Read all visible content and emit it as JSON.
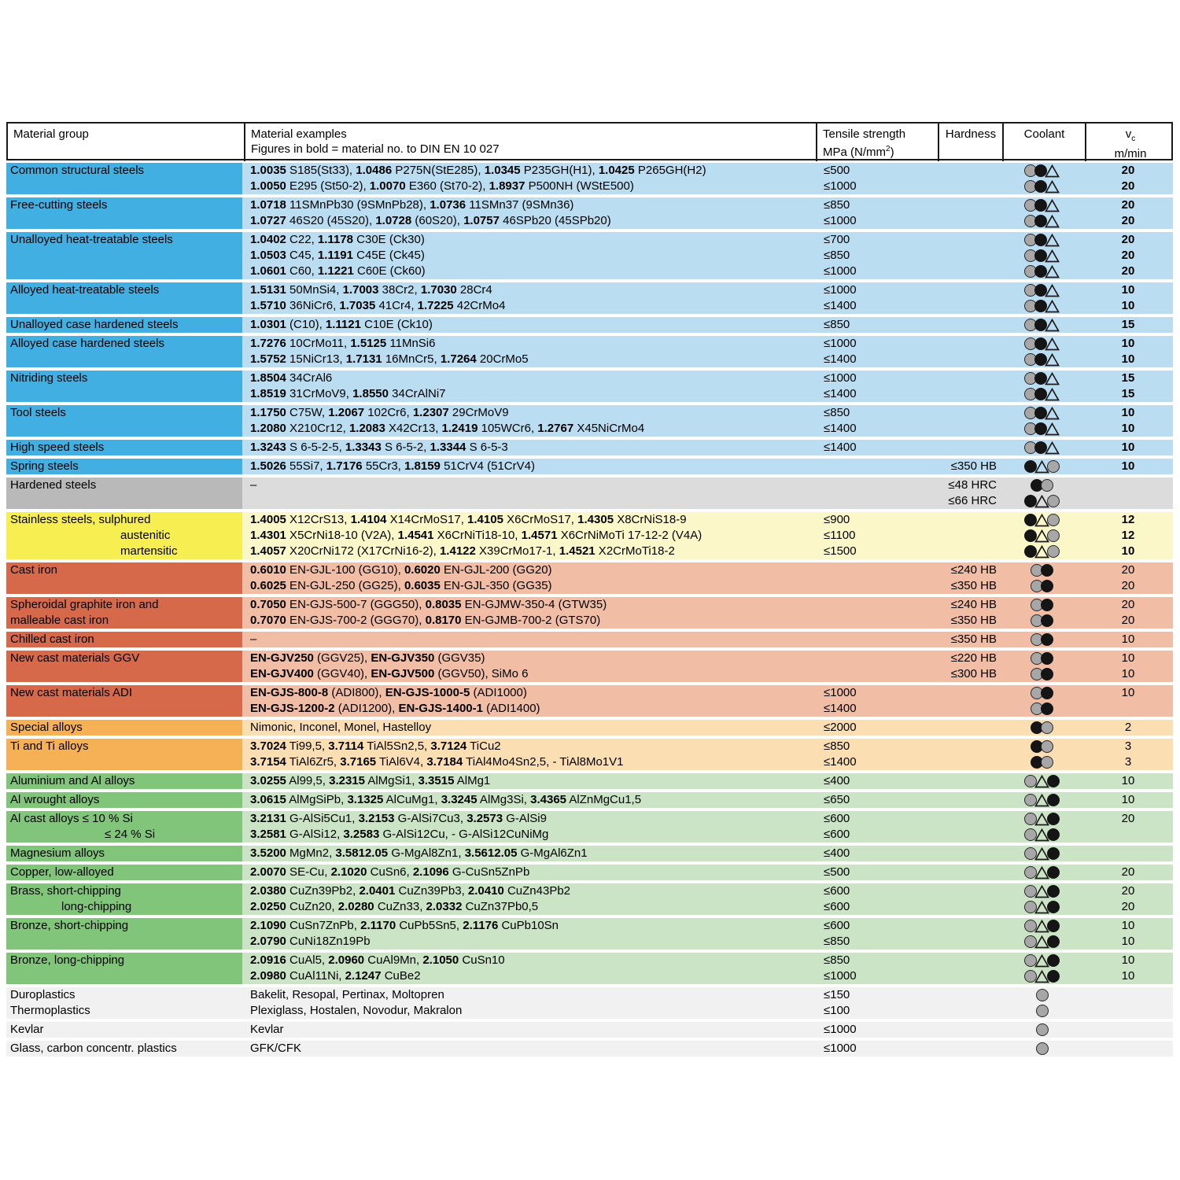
{
  "header": {
    "col_material_group": "Material group",
    "col_examples_line1": "Material examples",
    "col_examples_line2": "Figures in bold = material no. to DIN EN 10 027",
    "col_tensile_line1": "Tensile strength",
    "col_tensile_line2_pre": "MPa (N/mm",
    "col_tensile_sup": "2",
    "col_tensile_line2_post": ")",
    "col_hardness": "Hardness",
    "col_coolant": "Coolant",
    "col_vc_main": "v",
    "col_vc_sub": "c",
    "col_vc_line2": "m/min"
  },
  "coolant_legend": {
    "G": "gray-circle",
    "B": "black-circle",
    "T": "white-triangle"
  },
  "themes": {
    "blue": {
      "group": "#42afe2",
      "row": "#bbddf2"
    },
    "gray": {
      "group": "#b9b9b9",
      "row": "#dcdcdc"
    },
    "yellow": {
      "group": "#f7ee51",
      "row": "#fbf7c9"
    },
    "red": {
      "group": "#d5694a",
      "row": "#f2bda5"
    },
    "orange": {
      "group": "#f6b055",
      "row": "#fbdfb2"
    },
    "green": {
      "group": "#80c579",
      "row": "#cbe4c6"
    },
    "plain": {
      "group": "#f1f1f1",
      "row": "#f1f1f1"
    }
  },
  "groups": [
    {
      "theme": "blue",
      "vc_bold": true,
      "label": [
        {
          "text": "Common structural steels",
          "indent": 0
        }
      ],
      "rows": [
        {
          "ex": "**1.0035** S185(St33), **1.0486** P275N(StE285), **1.0345** P235GH(H1), **1.0425** P265GH(H2)",
          "tensile": "≤500",
          "hardness": "",
          "cool": "GBT",
          "vc": "20"
        },
        {
          "ex": "**1.0050** E295 (St50-2), **1.0070** E360 (St70-2), **1.8937** P500NH (WStE500)",
          "tensile": "≤1000",
          "hardness": "",
          "cool": "GBT",
          "vc": "20"
        }
      ]
    },
    {
      "theme": "blue",
      "vc_bold": true,
      "label": [
        {
          "text": "Free-cutting steels",
          "indent": 0
        }
      ],
      "rows": [
        {
          "ex": "**1.0718** 11SMnPb30 (9SMnPb28), **1.0736** 11SMn37 (9SMn36)",
          "tensile": "≤850",
          "hardness": "",
          "cool": "GBT",
          "vc": "20"
        },
        {
          "ex": "**1.0727** 46S20 (45S20), **1.0728** (60S20), **1.0757** 46SPb20 (45SPb20)",
          "tensile": "≤1000",
          "hardness": "",
          "cool": "GBT",
          "vc": "20"
        }
      ]
    },
    {
      "theme": "blue",
      "vc_bold": true,
      "label": [
        {
          "text": "Unalloyed heat-treatable steels",
          "indent": 0
        }
      ],
      "rows": [
        {
          "ex": "**1.0402** C22, **1.1178** C30E (Ck30)",
          "tensile": "≤700",
          "hardness": "",
          "cool": "GBT",
          "vc": "20"
        },
        {
          "ex": "**1.0503** C45, **1.1191** C45E (Ck45)",
          "tensile": "≤850",
          "hardness": "",
          "cool": "GBT",
          "vc": "20"
        },
        {
          "ex": "**1.0601** C60, **1.1221** C60E (Ck60)",
          "tensile": "≤1000",
          "hardness": "",
          "cool": "GBT",
          "vc": "20"
        }
      ]
    },
    {
      "theme": "blue",
      "vc_bold": true,
      "label": [
        {
          "text": "Alloyed heat-treatable steels",
          "indent": 0
        }
      ],
      "rows": [
        {
          "ex": "**1.5131** 50MnSi4, **1.7003** 38Cr2, **1.7030** 28Cr4",
          "tensile": "≤1000",
          "hardness": "",
          "cool": "GBT",
          "vc": "10"
        },
        {
          "ex": "**1.5710** 36NiCr6, **1.7035** 41Cr4, **1.7225** 42CrMo4",
          "tensile": "≤1400",
          "hardness": "",
          "cool": "GBT",
          "vc": "10"
        }
      ]
    },
    {
      "theme": "blue",
      "vc_bold": true,
      "label": [
        {
          "text": "Unalloyed case hardened steels",
          "indent": 0
        }
      ],
      "rows": [
        {
          "ex": "**1.0301** (C10), **1.1121** C10E (Ck10)",
          "tensile": "≤850",
          "hardness": "",
          "cool": "GBT",
          "vc": "15"
        }
      ]
    },
    {
      "theme": "blue",
      "vc_bold": true,
      "label": [
        {
          "text": "Alloyed case hardened steels",
          "indent": 0
        }
      ],
      "rows": [
        {
          "ex": "**1.7276** 10CrMo11, **1.5125** 11MnSi6",
          "tensile": "≤1000",
          "hardness": "",
          "cool": "GBT",
          "vc": "10"
        },
        {
          "ex": "**1.5752** 15NiCr13, **1.7131** 16MnCr5, **1.7264** 20CrMo5",
          "tensile": "≤1400",
          "hardness": "",
          "cool": "GBT",
          "vc": "10"
        }
      ]
    },
    {
      "theme": "blue",
      "vc_bold": true,
      "label": [
        {
          "text": "Nitriding steels",
          "indent": 0
        }
      ],
      "rows": [
        {
          "ex": "**1.8504** 34CrAl6",
          "tensile": "≤1000",
          "hardness": "",
          "cool": "GBT",
          "vc": "15"
        },
        {
          "ex": "**1.8519** 31CrMoV9, **1.8550** 34CrAlNi7",
          "tensile": "≤1400",
          "hardness": "",
          "cool": "GBT",
          "vc": "15"
        }
      ]
    },
    {
      "theme": "blue",
      "vc_bold": true,
      "label": [
        {
          "text": "Tool steels",
          "indent": 0
        }
      ],
      "rows": [
        {
          "ex": "**1.1750** C75W, **1.2067** 102Cr6, **1.2307** 29CrMoV9",
          "tensile": "≤850",
          "hardness": "",
          "cool": "GBT",
          "vc": "10"
        },
        {
          "ex": "**1.2080** X210Cr12, **1.2083** X42Cr13, **1.2419** 105WCr6, **1.2767** X45NiCrMo4",
          "tensile": "≤1400",
          "hardness": "",
          "cool": "GBT",
          "vc": "10"
        }
      ]
    },
    {
      "theme": "blue",
      "vc_bold": true,
      "label": [
        {
          "text": "High speed steels",
          "indent": 0
        }
      ],
      "rows": [
        {
          "ex": "**1.3243** S 6-5-2-5, **1.3343** S 6-5-2, **1.3344** S 6-5-3",
          "tensile": "≤1400",
          "hardness": "",
          "cool": "GBT",
          "vc": "10"
        }
      ]
    },
    {
      "theme": "blue",
      "vc_bold": true,
      "label": [
        {
          "text": "Spring steels",
          "indent": 0
        }
      ],
      "rows": [
        {
          "ex": "**1.5026** 55Si7, **1.7176** 55Cr3, **1.8159** 51CrV4 (51CrV4)",
          "tensile": "",
          "hardness": "≤350 HB",
          "cool": "BTG",
          "vc": "10"
        }
      ]
    },
    {
      "theme": "gray",
      "vc_bold": false,
      "label": [
        {
          "text": "Hardened steels",
          "indent": 0
        }
      ],
      "rows": [
        {
          "ex": "–",
          "tensile": "",
          "hardness": "≤48 HRC",
          "cool": "BG",
          "vc": ""
        },
        {
          "ex": "",
          "tensile": "",
          "hardness": "≤66 HRC",
          "cool": "BTG",
          "vc": ""
        }
      ]
    },
    {
      "theme": "yellow",
      "vc_bold": true,
      "row_labels": [
        {
          "text": "Stainless steels, sulphured",
          "indent": 0
        },
        {
          "text": "austenitic",
          "indent": 140
        },
        {
          "text": "martensitic",
          "indent": 140
        }
      ],
      "rows": [
        {
          "ex": "**1.4005** X12CrS13, **1.4104** X14CrMoS17, **1.4105** X6CrMoS17, **1.4305** X8CrNiS18-9",
          "tensile": "≤900",
          "hardness": "",
          "cool": "BTG",
          "vc": "12"
        },
        {
          "ex": "**1.4301** X5CrNi18-10 (V2A), **1.4541** X6CrNiTi18-10, **1.4571** X6CrNiMoTi 17-12-2 (V4A)",
          "tensile": "≤1100",
          "hardness": "",
          "cool": "BTG",
          "vc": "12"
        },
        {
          "ex": "**1.4057** X20CrNi172 (X17CrNi16-2), **1.4122** X39CrMo17-1, **1.4521** X2CrMoTi18-2",
          "tensile": "≤1500",
          "hardness": "",
          "cool": "BTG",
          "vc": "10"
        }
      ]
    },
    {
      "theme": "red",
      "vc_bold": false,
      "label": [
        {
          "text": "Cast iron",
          "indent": 0
        }
      ],
      "rows": [
        {
          "ex": "**0.6010** EN-GJL-100 (GG10), **0.6020** EN-GJL-200 (GG20)",
          "tensile": "",
          "hardness": "≤240 HB",
          "cool": "GB",
          "vc": "20"
        },
        {
          "ex": "**0.6025** EN-GJL-250 (GG25), **0.6035** EN-GJL-350 (GG35)",
          "tensile": "",
          "hardness": "≤350 HB",
          "cool": "GB",
          "vc": "20"
        }
      ]
    },
    {
      "theme": "red",
      "vc_bold": false,
      "label": [
        {
          "text": "Spheroidal graphite iron and",
          "indent": 0
        },
        {
          "text": "malleable cast iron",
          "indent": 0
        }
      ],
      "rows": [
        {
          "ex": "**0.7050** EN-GJS-500-7 (GGG50), **0.8035** EN-GJMW-350-4 (GTW35)",
          "tensile": "",
          "hardness": "≤240 HB",
          "cool": "GB",
          "vc": "20"
        },
        {
          "ex": "**0.7070** EN-GJS-700-2 (GGG70), **0.8170** EN-GJMB-700-2 (GTS70)",
          "tensile": "",
          "hardness": "≤350 HB",
          "cool": "GB",
          "vc": "20"
        }
      ]
    },
    {
      "theme": "red",
      "vc_bold": false,
      "label": [
        {
          "text": "Chilled cast iron",
          "indent": 0
        }
      ],
      "rows": [
        {
          "ex": "–",
          "tensile": "",
          "hardness": "≤350 HB",
          "cool": "GB",
          "vc": "10"
        }
      ]
    },
    {
      "theme": "red",
      "vc_bold": false,
      "label": [
        {
          "text": "New cast materials GGV",
          "indent": 0
        }
      ],
      "rows": [
        {
          "ex": "**EN-GJV250** (GGV25), **EN-GJV350** (GGV35)",
          "tensile": "",
          "hardness": "≤220 HB",
          "cool": "GB",
          "vc": "10"
        },
        {
          "ex": "**EN-GJV400** (GGV40), **EN-GJV500** (GGV50), SiMo 6",
          "tensile": "",
          "hardness": "≤300 HB",
          "cool": "GB",
          "vc": "10"
        }
      ]
    },
    {
      "theme": "red",
      "vc_bold": false,
      "label": [
        {
          "text": "New cast materials ADI",
          "indent": 0
        }
      ],
      "rows": [
        {
          "ex": "**EN-GJS-800-8** (ADI800), **EN-GJS-1000-5** (ADI1000)",
          "tensile": "≤1000",
          "hardness": "",
          "cool": "GB",
          "vc": "10"
        },
        {
          "ex": "**EN-GJS-1200-2** (ADI1200), **EN-GJS-1400-1** (ADI1400)",
          "tensile": "≤1400",
          "hardness": "",
          "cool": "GB",
          "vc": ""
        }
      ]
    },
    {
      "theme": "orange",
      "vc_bold": false,
      "label": [
        {
          "text": "Special alloys",
          "indent": 0
        }
      ],
      "rows": [
        {
          "ex": "Nimonic, Inconel, Monel, Hastelloy",
          "tensile": "≤2000",
          "hardness": "",
          "cool": "BG",
          "vc": "2"
        }
      ]
    },
    {
      "theme": "orange",
      "vc_bold": false,
      "label": [
        {
          "text": "Ti and Ti alloys",
          "indent": 0
        }
      ],
      "rows": [
        {
          "ex": "**3.7024** Ti99,5, **3.7114** TiAl5Sn2,5, **3.7124** TiCu2",
          "tensile": "≤850",
          "hardness": "",
          "cool": "BG",
          "vc": "3"
        },
        {
          "ex": "**3.7154** TiAl6Zr5, **3.7165** TiAl6V4, **3.7184** TiAl4Mo4Sn2,5, - TiAl8Mo1V1",
          "tensile": "≤1400",
          "hardness": "",
          "cool": "BG",
          "vc": "3"
        }
      ]
    },
    {
      "theme": "green",
      "vc_bold": false,
      "label": [
        {
          "text": "Aluminium and Al alloys",
          "indent": 0
        }
      ],
      "rows": [
        {
          "ex": "**3.0255** Al99,5, **3.2315** AlMgSi1, **3.3515** AlMg1",
          "tensile": "≤400",
          "hardness": "",
          "cool": "GTB",
          "vc": "10"
        }
      ]
    },
    {
      "theme": "green",
      "vc_bold": false,
      "label": [
        {
          "text": "Al wrought alloys",
          "indent": 0
        }
      ],
      "rows": [
        {
          "ex": "**3.0615** AlMgSiPb, **3.1325** AlCuMg1, **3.3245** AlMg3Si, **3.4365** AlZnMgCu1,5",
          "tensile": "≤650",
          "hardness": "",
          "cool": "GTB",
          "vc": "10"
        }
      ]
    },
    {
      "theme": "green",
      "vc_bold": false,
      "row_labels": [
        {
          "text": "Al cast alloys ≤ 10 % Si",
          "indent": 0
        },
        {
          "text": "≤ 24 % Si",
          "indent": 120
        }
      ],
      "rows": [
        {
          "ex": "**3.2131** G-AlSi5Cu1, **3.2153** G-AlSi7Cu3, **3.2573** G-AlSi9",
          "tensile": "≤600",
          "hardness": "",
          "cool": "GTB",
          "vc": "20"
        },
        {
          "ex": "**3.2581** G-AlSi12, **3.2583** G-AlSi12Cu, - G-AlSi12CuNiMg",
          "tensile": "≤600",
          "hardness": "",
          "cool": "GTB",
          "vc": ""
        }
      ]
    },
    {
      "theme": "green",
      "vc_bold": false,
      "label": [
        {
          "text": "Magnesium alloys",
          "indent": 0
        }
      ],
      "rows": [
        {
          "ex": "**3.5200** MgMn2, **3.5812.05** G-MgAl8Zn1, **3.5612.05** G-MgAl6Zn1",
          "tensile": "≤400",
          "hardness": "",
          "cool": "GTB",
          "vc": ""
        }
      ]
    },
    {
      "theme": "green",
      "vc_bold": false,
      "label": [
        {
          "text": "Copper, low-alloyed",
          "indent": 0
        }
      ],
      "rows": [
        {
          "ex": "**2.0070** SE-Cu, **2.1020** CuSn6, **2.1096** G-CuSn5ZnPb",
          "tensile": "≤500",
          "hardness": "",
          "cool": "GTB",
          "vc": "20"
        }
      ]
    },
    {
      "theme": "green",
      "vc_bold": false,
      "row_labels": [
        {
          "text": "Brass, short-chipping",
          "indent": 0
        },
        {
          "text": "long-chipping",
          "indent": 65
        }
      ],
      "rows": [
        {
          "ex": "**2.0380** CuZn39Pb2, **2.0401** CuZn39Pb3, **2.0410** CuZn43Pb2",
          "tensile": "≤600",
          "hardness": "",
          "cool": "GTB",
          "vc": "20"
        },
        {
          "ex": "**2.0250** CuZn20, **2.0280** CuZn33, **2.0332** CuZn37Pb0,5",
          "tensile": "≤600",
          "hardness": "",
          "cool": "GTB",
          "vc": "20"
        }
      ]
    },
    {
      "theme": "green",
      "vc_bold": false,
      "label": [
        {
          "text": "Bronze, short-chipping",
          "indent": 0
        }
      ],
      "rows": [
        {
          "ex": "**2.1090** CuSn7ZnPb, **2.1170** CuPb5Sn5, **2.1176** CuPb10Sn",
          "tensile": "≤600",
          "hardness": "",
          "cool": "GTB",
          "vc": "10"
        },
        {
          "ex": "**2.0790** CuNi18Zn19Pb",
          "tensile": "≤850",
          "hardness": "",
          "cool": "GTB",
          "vc": "10"
        }
      ]
    },
    {
      "theme": "green",
      "vc_bold": false,
      "label": [
        {
          "text": "Bronze, long-chipping",
          "indent": 0
        }
      ],
      "rows": [
        {
          "ex": "**2.0916** CuAl5, **2.0960** CuAl9Mn, **2.1050** CuSn10",
          "tensile": "≤850",
          "hardness": "",
          "cool": "GTB",
          "vc": "10"
        },
        {
          "ex": "**2.0980** CuAl11Ni, **2.1247** CuBe2",
          "tensile": "≤1000",
          "hardness": "",
          "cool": "GTB",
          "vc": "10"
        }
      ]
    },
    {
      "theme": "plain",
      "vc_bold": false,
      "row_labels": [
        {
          "text": "Duroplastics",
          "indent": 0
        },
        {
          "text": "Thermoplastics",
          "indent": 0
        }
      ],
      "rows": [
        {
          "ex": "Bakelit, Resopal, Pertinax, Moltopren",
          "tensile": "≤150",
          "hardness": "",
          "cool": "G",
          "vc": ""
        },
        {
          "ex": "Plexiglass, Hostalen, Novodur, Makralon",
          "tensile": "≤100",
          "hardness": "",
          "cool": "G",
          "vc": ""
        }
      ]
    },
    {
      "theme": "plain",
      "vc_bold": false,
      "label": [
        {
          "text": "Kevlar",
          "indent": 0
        }
      ],
      "rows": [
        {
          "ex": "Kevlar",
          "tensile": "≤1000",
          "hardness": "",
          "cool": "G",
          "vc": ""
        }
      ]
    },
    {
      "theme": "plain",
      "vc_bold": false,
      "label": [
        {
          "text": "Glass, carbon concentr. plastics",
          "indent": 0
        }
      ],
      "rows": [
        {
          "ex": "GFK/CFK",
          "tensile": "≤1000",
          "hardness": "",
          "cool": "G",
          "vc": ""
        }
      ]
    }
  ]
}
